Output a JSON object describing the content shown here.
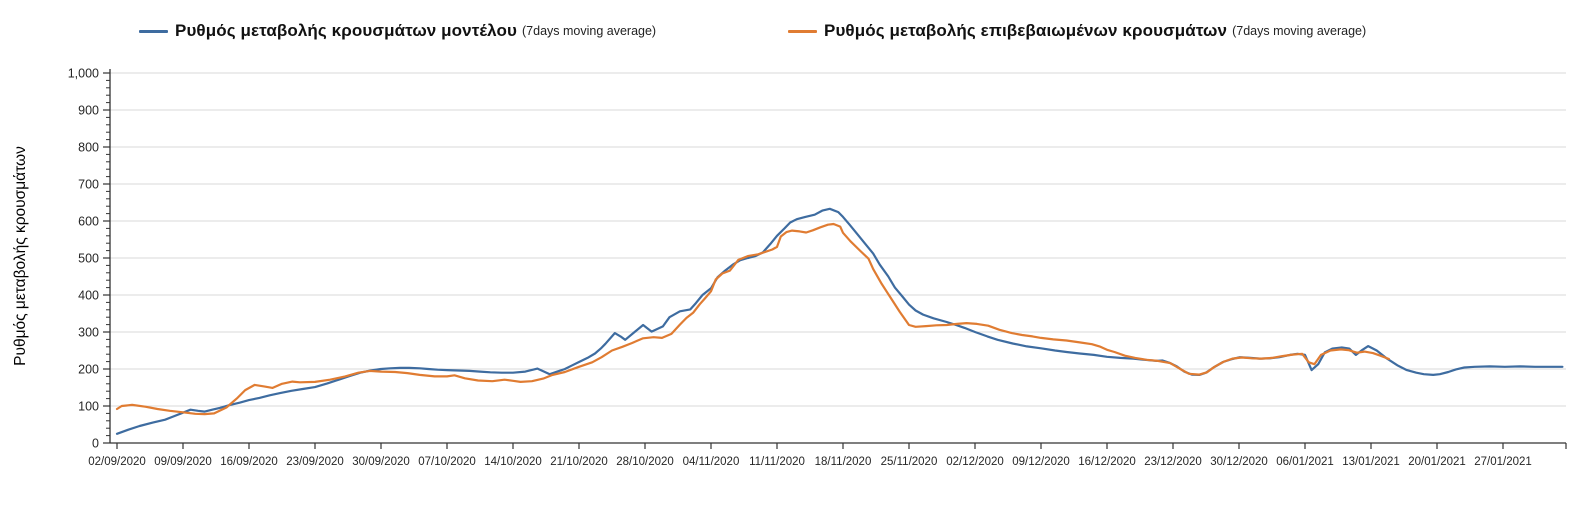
{
  "legend": {
    "items": [
      {
        "label": "Ρυθμός μεταβολής κρουσμάτων μοντέλου",
        "suffix": "(7days moving average)"
      },
      {
        "label": "Ρυθμός μεταβολής επιβεβαιωμένων κρουσμάτων",
        "suffix": "(7days moving average)"
      }
    ]
  },
  "chart_data": {
    "type": "line",
    "title": "",
    "xlabel": "",
    "ylabel": "Ρυθμός μεταβολής κρουσμάτων",
    "ylim": [
      0,
      1000
    ],
    "grid": "horizontal",
    "legend_position": "top",
    "colors": {
      "grid": "#d9d9d9",
      "axis": "#333333",
      "tick_text": "#262626"
    },
    "y_tick_labels": [
      "0",
      "100",
      "200",
      "300",
      "400",
      "500",
      "600",
      "700",
      "800",
      "900",
      "1,000"
    ],
    "y_minor_step": 20,
    "x_tick_interval_days": 7,
    "x_tick_labels": [
      "02/09/2020",
      "09/09/2020",
      "16/09/2020",
      "23/09/2020",
      "30/09/2020",
      "07/10/2020",
      "14/10/2020",
      "21/10/2020",
      "28/10/2020",
      "04/11/2020",
      "11/11/2020",
      "18/11/2020",
      "25/11/2020",
      "02/12/2020",
      "09/12/2020",
      "16/12/2020",
      "23/12/2020",
      "30/12/2020",
      "06/01/2021",
      "13/01/2021",
      "20/01/2021",
      "27/01/2021"
    ],
    "x_unit": "days since 02/09/2020",
    "series": [
      {
        "name": "Ρυθμός μεταβολής κρουσμάτων μοντέλου (7days moving average)",
        "data_name": "series-line-model",
        "color": "#3e6ca0",
        "points": [
          [
            0,
            25
          ],
          [
            1.2,
            36
          ],
          [
            2.4,
            46
          ],
          [
            3.8,
            55
          ],
          [
            5.1,
            63
          ],
          [
            6,
            72
          ],
          [
            7,
            82
          ],
          [
            7.8,
            90
          ],
          [
            8.6,
            87
          ],
          [
            9.3,
            85
          ],
          [
            10.1,
            90
          ],
          [
            10.9,
            95
          ],
          [
            12,
            103
          ],
          [
            13,
            109
          ],
          [
            14,
            116
          ],
          [
            15.1,
            122
          ],
          [
            16.2,
            129
          ],
          [
            17.3,
            135
          ],
          [
            18.5,
            141
          ],
          [
            19.7,
            146
          ],
          [
            21,
            151
          ],
          [
            22.3,
            161
          ],
          [
            23.6,
            172
          ],
          [
            24.7,
            181
          ],
          [
            25.8,
            190
          ],
          [
            26.9,
            196
          ],
          [
            28,
            200
          ],
          [
            29,
            202
          ],
          [
            30,
            203
          ],
          [
            31,
            203
          ],
          [
            32.1,
            202
          ],
          [
            33,
            200
          ],
          [
            34,
            198
          ],
          [
            35,
            197
          ],
          [
            36.2,
            196
          ],
          [
            37.4,
            195
          ],
          [
            38.5,
            193
          ],
          [
            39.6,
            191
          ],
          [
            40.8,
            190
          ],
          [
            42,
            190
          ],
          [
            43.3,
            193
          ],
          [
            44.6,
            201
          ],
          [
            45.9,
            186
          ],
          [
            46.7,
            193
          ],
          [
            47.5,
            200
          ],
          [
            48.2,
            209
          ],
          [
            49,
            219
          ],
          [
            49.9,
            230
          ],
          [
            50.7,
            242
          ],
          [
            51.3,
            255
          ],
          [
            51.8,
            268
          ],
          [
            52.8,
            297
          ],
          [
            53.4,
            288
          ],
          [
            53.9,
            279
          ],
          [
            54.9,
            300
          ],
          [
            55.8,
            319
          ],
          [
            56.7,
            301
          ],
          [
            57.9,
            315
          ],
          [
            58.6,
            340
          ],
          [
            59.7,
            356
          ],
          [
            60.8,
            361
          ],
          [
            61.4,
            378
          ],
          [
            62.1,
            400
          ],
          [
            63,
            418
          ],
          [
            63.7,
            448
          ],
          [
            64.5,
            466
          ],
          [
            65.3,
            482
          ],
          [
            66.1,
            494
          ],
          [
            66.9,
            500
          ],
          [
            67.7,
            505
          ],
          [
            68.5,
            515
          ],
          [
            69.3,
            538
          ],
          [
            70,
            560
          ],
          [
            70.8,
            580
          ],
          [
            71.4,
            596
          ],
          [
            72.1,
            605
          ],
          [
            73,
            611
          ],
          [
            74,
            617
          ],
          [
            74.8,
            628
          ],
          [
            75.6,
            633
          ],
          [
            76.5,
            624
          ],
          [
            77,
            611
          ],
          [
            77.7,
            590
          ],
          [
            78.6,
            562
          ],
          [
            79.3,
            540
          ],
          [
            80.2,
            512
          ],
          [
            80.9,
            482
          ],
          [
            81.8,
            450
          ],
          [
            82.5,
            420
          ],
          [
            83.3,
            396
          ],
          [
            84,
            374
          ],
          [
            84.7,
            358
          ],
          [
            85.5,
            347
          ],
          [
            86.6,
            337
          ],
          [
            88,
            327
          ],
          [
            89.1,
            318
          ],
          [
            89.9,
            311
          ],
          [
            91,
            300
          ],
          [
            92.3,
            288
          ],
          [
            93.4,
            279
          ],
          [
            95,
            269
          ],
          [
            96.5,
            261
          ],
          [
            98,
            256
          ],
          [
            99.5,
            250
          ],
          [
            100.7,
            246
          ],
          [
            102.1,
            242
          ],
          [
            103.6,
            238
          ],
          [
            105,
            233
          ],
          [
            106.4,
            230
          ],
          [
            107.8,
            228
          ],
          [
            109,
            225
          ],
          [
            110.3,
            222
          ],
          [
            110.9,
            223
          ],
          [
            111.7,
            216
          ],
          [
            112.4,
            207
          ],
          [
            113.2,
            193
          ],
          [
            114,
            185
          ],
          [
            114.8,
            184
          ],
          [
            115.5,
            190
          ],
          [
            116.3,
            204
          ],
          [
            117.3,
            219
          ],
          [
            118.3,
            227
          ],
          [
            119.1,
            232
          ],
          [
            120.2,
            230
          ],
          [
            121.2,
            228
          ],
          [
            122.3,
            229
          ],
          [
            123.3,
            232
          ],
          [
            124.4,
            238
          ],
          [
            125.2,
            241
          ],
          [
            126,
            238
          ],
          [
            126.7,
            197
          ],
          [
            127.4,
            213
          ],
          [
            128.1,
            245
          ],
          [
            128.9,
            255
          ],
          [
            129.9,
            258
          ],
          [
            130.7,
            255
          ],
          [
            131.4,
            238
          ],
          [
            132.1,
            252
          ],
          [
            132.7,
            262
          ],
          [
            133.6,
            250
          ],
          [
            134.7,
            228
          ],
          [
            135.8,
            210
          ],
          [
            136.8,
            197
          ],
          [
            137.8,
            190
          ],
          [
            138.6,
            186
          ],
          [
            139.6,
            184
          ],
          [
            140.3,
            186
          ],
          [
            141.2,
            192
          ],
          [
            142,
            199
          ],
          [
            142.9,
            204
          ],
          [
            144,
            206
          ],
          [
            145.6,
            207
          ],
          [
            147.2,
            206
          ],
          [
            148.8,
            207
          ],
          [
            150.4,
            206
          ],
          [
            152,
            206
          ],
          [
            153.3,
            206
          ]
        ]
      },
      {
        "name": "Ρυθμός μεταβολής επιβεβαιωμένων κρουσμάτων (7days moving average)",
        "data_name": "series-line-confirmed",
        "color": "#e07c32",
        "points": [
          [
            0,
            92
          ],
          [
            0.5,
            100
          ],
          [
            1.6,
            103
          ],
          [
            3,
            98
          ],
          [
            4.3,
            92
          ],
          [
            5.6,
            87
          ],
          [
            7,
            83
          ],
          [
            8.3,
            79
          ],
          [
            9.3,
            78
          ],
          [
            10.3,
            80
          ],
          [
            11.6,
            96
          ],
          [
            12.7,
            120
          ],
          [
            13.6,
            143
          ],
          [
            14.6,
            157
          ],
          [
            15.6,
            153
          ],
          [
            16.5,
            149
          ],
          [
            17.5,
            160
          ],
          [
            18.6,
            166
          ],
          [
            19.4,
            164
          ],
          [
            21,
            165
          ],
          [
            22.6,
            171
          ],
          [
            24.2,
            180
          ],
          [
            25.6,
            190
          ],
          [
            26.8,
            195
          ],
          [
            28,
            193
          ],
          [
            29.5,
            192
          ],
          [
            30.8,
            189
          ],
          [
            32.1,
            184
          ],
          [
            33.7,
            180
          ],
          [
            35,
            180
          ],
          [
            35.8,
            183
          ],
          [
            36.9,
            175
          ],
          [
            38.3,
            169
          ],
          [
            39.8,
            167
          ],
          [
            41.1,
            171
          ],
          [
            42,
            168
          ],
          [
            42.8,
            165
          ],
          [
            44,
            167
          ],
          [
            45.2,
            174
          ],
          [
            46.2,
            184
          ],
          [
            47.5,
            192
          ],
          [
            49,
            206
          ],
          [
            50.4,
            218
          ],
          [
            51.4,
            232
          ],
          [
            52.5,
            250
          ],
          [
            53.6,
            260
          ],
          [
            54.6,
            270
          ],
          [
            55.8,
            283
          ],
          [
            56.9,
            286
          ],
          [
            57.8,
            284
          ],
          [
            58.8,
            295
          ],
          [
            59.7,
            320
          ],
          [
            60.4,
            338
          ],
          [
            61.1,
            352
          ],
          [
            61.8,
            375
          ],
          [
            62.4,
            392
          ],
          [
            63,
            410
          ],
          [
            63.5,
            442
          ],
          [
            64.2,
            458
          ],
          [
            65,
            466
          ],
          [
            65.9,
            495
          ],
          [
            66.9,
            505
          ],
          [
            68,
            510
          ],
          [
            68.7,
            516
          ],
          [
            69.5,
            523
          ],
          [
            70,
            530
          ],
          [
            70.4,
            558
          ],
          [
            71,
            570
          ],
          [
            71.6,
            574
          ],
          [
            72.4,
            572
          ],
          [
            73.1,
            569
          ],
          [
            73.8,
            575
          ],
          [
            74.6,
            583
          ],
          [
            75.4,
            590
          ],
          [
            76,
            592
          ],
          [
            76.7,
            585
          ],
          [
            77,
            568
          ],
          [
            77.8,
            545
          ],
          [
            78.8,
            520
          ],
          [
            79.7,
            498
          ],
          [
            80.2,
            470
          ],
          [
            81.1,
            430
          ],
          [
            82,
            395
          ],
          [
            83,
            355
          ],
          [
            84,
            319
          ],
          [
            84.7,
            314
          ],
          [
            85.8,
            316
          ],
          [
            86.9,
            318
          ],
          [
            88,
            319
          ],
          [
            89.1,
            322
          ],
          [
            90.1,
            324
          ],
          [
            91.2,
            322
          ],
          [
            92.4,
            317
          ],
          [
            93.6,
            306
          ],
          [
            94.9,
            297
          ],
          [
            96,
            292
          ],
          [
            97.1,
            288
          ],
          [
            98,
            284
          ],
          [
            99.3,
            280
          ],
          [
            100.7,
            277
          ],
          [
            102.1,
            272
          ],
          [
            103.4,
            267
          ],
          [
            104.2,
            261
          ],
          [
            105,
            252
          ],
          [
            105.8,
            246
          ],
          [
            106.9,
            236
          ],
          [
            108,
            230
          ],
          [
            109.2,
            225
          ],
          [
            110.4,
            222
          ],
          [
            111.7,
            216
          ],
          [
            112.7,
            201
          ],
          [
            113.7,
            187
          ],
          [
            114.8,
            185
          ],
          [
            115.6,
            191
          ],
          [
            116.4,
            206
          ],
          [
            117.4,
            220
          ],
          [
            118.3,
            228
          ],
          [
            119.3,
            231
          ],
          [
            120.4,
            229
          ],
          [
            121.4,
            228
          ],
          [
            122.5,
            230
          ],
          [
            123.6,
            235
          ],
          [
            124.7,
            239
          ],
          [
            125.7,
            241
          ],
          [
            126.4,
            218
          ],
          [
            127,
            213
          ],
          [
            127.7,
            238
          ],
          [
            128.7,
            250
          ],
          [
            129.8,
            253
          ],
          [
            130.6,
            251
          ],
          [
            131.5,
            244
          ],
          [
            132.3,
            247
          ],
          [
            133.2,
            243
          ],
          [
            134,
            236
          ],
          [
            134.9,
            227
          ]
        ]
      }
    ]
  }
}
